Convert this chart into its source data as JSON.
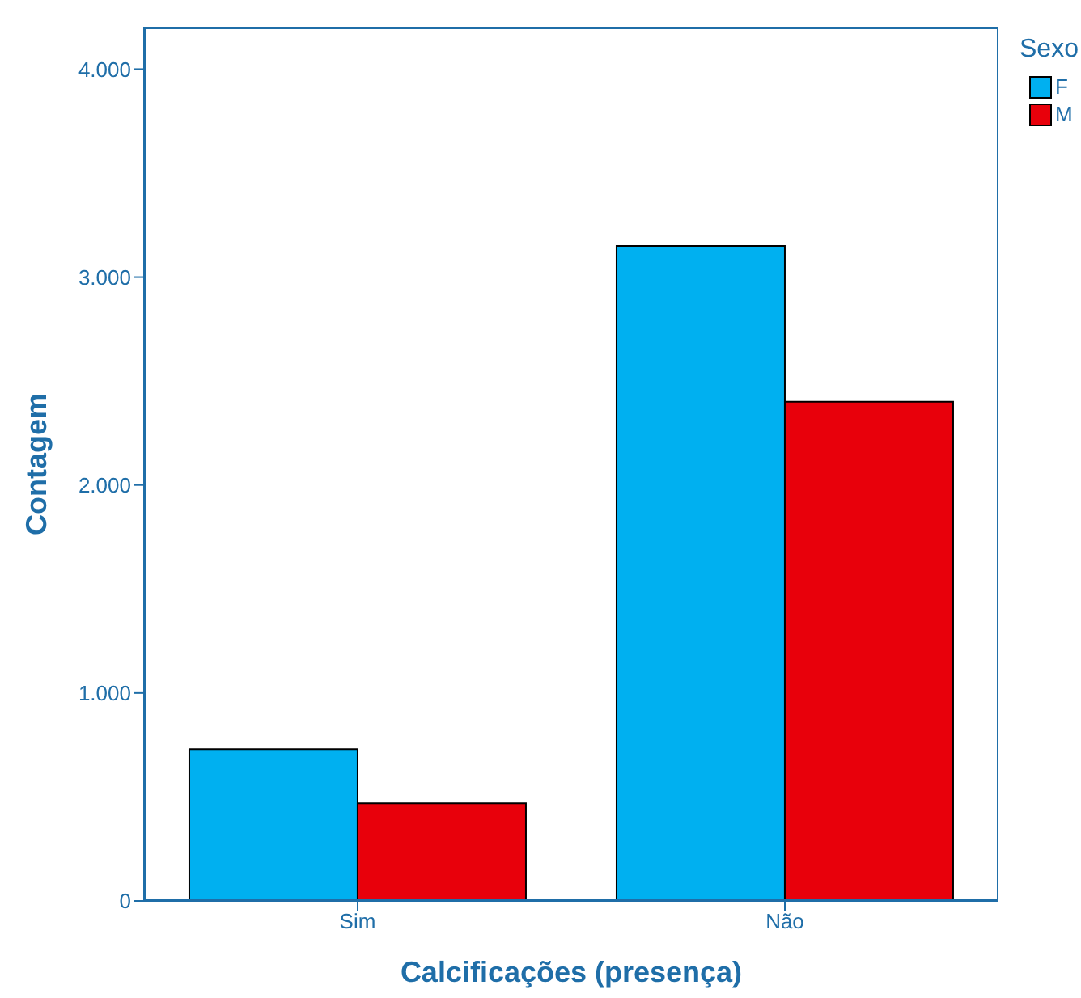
{
  "chart_data": {
    "type": "bar",
    "xlabel": "Calcificações (presença)",
    "ylabel": "Contagem",
    "legend_title": "Sexo",
    "categories": [
      "Sim",
      "Não"
    ],
    "series": [
      {
        "name": "F",
        "color": "#00b0f0",
        "values": [
          730,
          3150
        ]
      },
      {
        "name": "M",
        "color": "#e8000b",
        "values": [
          470,
          2400
        ]
      }
    ],
    "ylim": [
      0,
      4200
    ],
    "yticks": [
      {
        "value": 0,
        "label": "0"
      },
      {
        "value": 1000,
        "label": "1.000"
      },
      {
        "value": 2000,
        "label": "2.000"
      },
      {
        "value": 3000,
        "label": "3.000"
      },
      {
        "value": 4000,
        "label": "4.000"
      }
    ],
    "grid": false,
    "legend": "top right"
  }
}
